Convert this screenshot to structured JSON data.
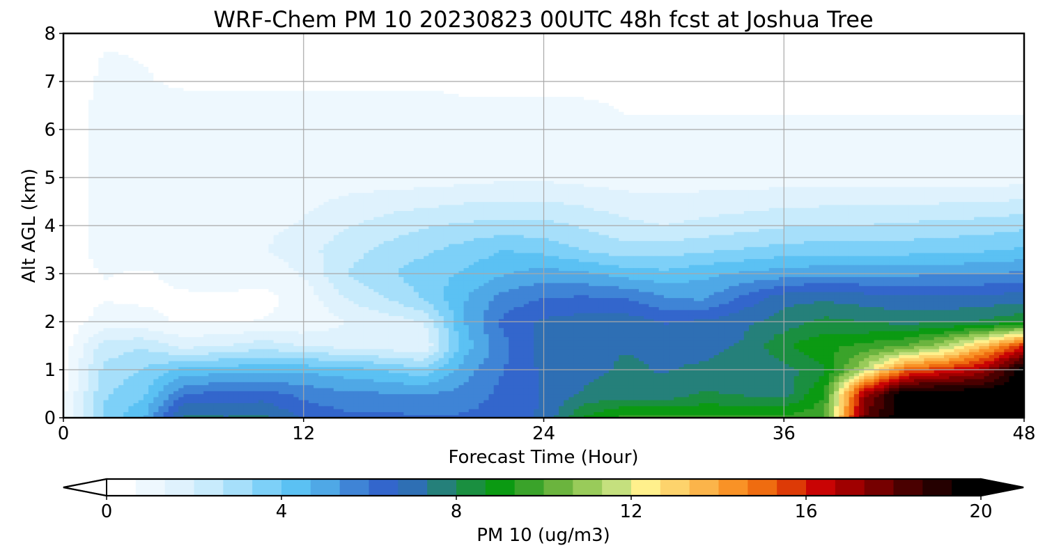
{
  "chart_data": {
    "type": "heatmap",
    "title": "WRF-Chem PM 10  20230823 00UTC 48h fcst at Joshua Tree",
    "xlabel": "Forecast Time (Hour)",
    "ylabel": "Alt AGL (km)",
    "xlim": [
      0,
      48
    ],
    "ylim": [
      0,
      8
    ],
    "xticks": [
      0,
      12,
      24,
      36,
      48
    ],
    "yticks": [
      0,
      1,
      2,
      3,
      4,
      5,
      6,
      7,
      8
    ],
    "grid": true,
    "x_hours": [
      0,
      2,
      4,
      6,
      8,
      10,
      12,
      14,
      16,
      18,
      20,
      22,
      24,
      26,
      28,
      30,
      32,
      34,
      36,
      38,
      40,
      42,
      44,
      46,
      48
    ],
    "z_levels_km": [
      0,
      0.5,
      1,
      1.5,
      2,
      2.5,
      3,
      3.5,
      4,
      5,
      6,
      7,
      8
    ],
    "values_ugm3": [
      [
        0.5,
        3.5,
        4.6,
        7.6,
        7.4,
        7.5,
        6.6,
        6.2,
        6.2,
        6.1,
        6.1,
        6.3,
        6.8,
        8.8,
        9.6,
        9.6,
        9.5,
        9.5,
        9.6,
        9.8,
        18,
        20,
        20,
        20,
        20
      ],
      [
        0.5,
        3.2,
        3.9,
        6.0,
        6.2,
        6.3,
        5.8,
        5.5,
        5.4,
        5.3,
        5.6,
        6.2,
        6.7,
        7.4,
        7.6,
        7.5,
        8.1,
        7.9,
        7.7,
        9.3,
        17,
        20,
        20,
        20,
        20
      ],
      [
        0.5,
        2.8,
        3.4,
        4.2,
        4.4,
        4.5,
        4.5,
        4.3,
        4.0,
        3.5,
        5.0,
        6.0,
        6.8,
        7.2,
        7.4,
        7.3,
        7.4,
        7.6,
        7.7,
        8.5,
        11.5,
        15,
        16,
        17,
        20
      ],
      [
        0.3,
        2.3,
        2.6,
        1.8,
        2.0,
        2.4,
        2.0,
        1.8,
        1.6,
        1.4,
        4.3,
        5.8,
        7.0,
        7.2,
        7.3,
        7.3,
        7.2,
        7.4,
        8.6,
        9.2,
        9.5,
        10.0,
        11.2,
        13.5,
        16
      ],
      [
        0.2,
        1.0,
        0.8,
        0.6,
        0.6,
        0.7,
        0.8,
        1.3,
        1.6,
        2.0,
        4.6,
        6.2,
        6.8,
        7.0,
        7.1,
        6.6,
        6.8,
        7.2,
        7.6,
        8.2,
        8.0,
        7.8,
        7.9,
        8.1,
        8.6
      ],
      [
        0.2,
        0.6,
        0.6,
        0.6,
        0.6,
        0.5,
        0.9,
        2.0,
        2.6,
        3.4,
        4.6,
        5.6,
        6.0,
        6.1,
        6.0,
        5.4,
        5.2,
        6.2,
        7.1,
        7.2,
        7.0,
        6.8,
        6.8,
        6.9,
        7.0
      ],
      [
        0.2,
        0.7,
        0.6,
        0.8,
        0.9,
        0.9,
        1.4,
        2.6,
        3.2,
        3.7,
        4.1,
        4.6,
        5.0,
        4.8,
        4.4,
        4.2,
        4.5,
        4.8,
        5.0,
        5.2,
        5.2,
        5.2,
        5.3,
        5.3,
        5.5
      ],
      [
        0.2,
        1.0,
        1.0,
        1.1,
        1.2,
        1.3,
        1.7,
        2.4,
        2.8,
        3.2,
        3.6,
        4.0,
        3.8,
        3.3,
        2.9,
        3.0,
        3.2,
        3.4,
        3.6,
        3.7,
        3.7,
        3.7,
        3.8,
        3.9,
        4.1
      ],
      [
        0.2,
        1.0,
        1.0,
        1.1,
        1.1,
        1.2,
        1.4,
        1.9,
        2.3,
        2.6,
        2.8,
        2.9,
        2.9,
        2.6,
        2.2,
        2.0,
        2.2,
        2.4,
        2.6,
        2.7,
        2.7,
        2.8,
        2.9,
        3.0,
        3.2
      ],
      [
        0.2,
        1.0,
        1.0,
        1.0,
        1.0,
        1.1,
        1.0,
        1.0,
        1.0,
        1.0,
        1.1,
        1.2,
        1.2,
        1.1,
        1.0,
        1.0,
        1.0,
        1.0,
        1.0,
        1.0,
        1.0,
        1.0,
        1.0,
        1.0,
        1.0
      ],
      [
        0.2,
        1.0,
        1.0,
        1.0,
        1.0,
        1.0,
        1.0,
        1.0,
        1.0,
        1.0,
        0.8,
        0.8,
        0.8,
        0.8,
        0.7,
        0.7,
        0.7,
        0.7,
        0.7,
        0.7,
        0.7,
        0.7,
        0.7,
        0.7,
        0.7
      ],
      [
        0.2,
        0.8,
        0.7,
        0.6,
        0.6,
        0.6,
        0.6,
        0.6,
        0.6,
        0.6,
        0.6,
        0.6,
        0.6,
        0.6,
        0.6,
        0.6,
        0.6,
        0.6,
        0.6,
        0.6,
        0.6,
        0.6,
        0.6,
        0.6,
        0.6
      ],
      [
        0.2,
        0.6,
        0.6,
        0.6,
        0.6,
        0.6,
        0.6,
        0.6,
        0.6,
        0.6,
        0.6,
        0.6,
        0.6,
        0.6,
        0.6,
        0.6,
        0.6,
        0.6,
        0.6,
        0.6,
        0.6,
        0.6,
        0.6,
        0.6,
        0.5
      ]
    ],
    "colorbar": {
      "label": "PM 10  (ug/m3)",
      "min": 0,
      "max": 20,
      "ticks": [
        0,
        4,
        8,
        12,
        16,
        20
      ],
      "extend": "both",
      "orientation": "horizontal",
      "colors": [
        "#ffffff",
        "#eef8fe",
        "#dff2fd",
        "#c8ebfc",
        "#a6dffa",
        "#7dd0f8",
        "#5bc1f3",
        "#4fa8e6",
        "#3f84d6",
        "#3366cc",
        "#2e6fb4",
        "#25807a",
        "#1a8f40",
        "#0b9a12",
        "#3aa32a",
        "#6bb43e",
        "#99cb5a",
        "#c5e07e",
        "#fff08c",
        "#fdd36c",
        "#fbb44a",
        "#f99226",
        "#ef6c10",
        "#dd3a06",
        "#c90404",
        "#a00000",
        "#760000",
        "#4a0000",
        "#250000",
        "#000000"
      ]
    }
  }
}
